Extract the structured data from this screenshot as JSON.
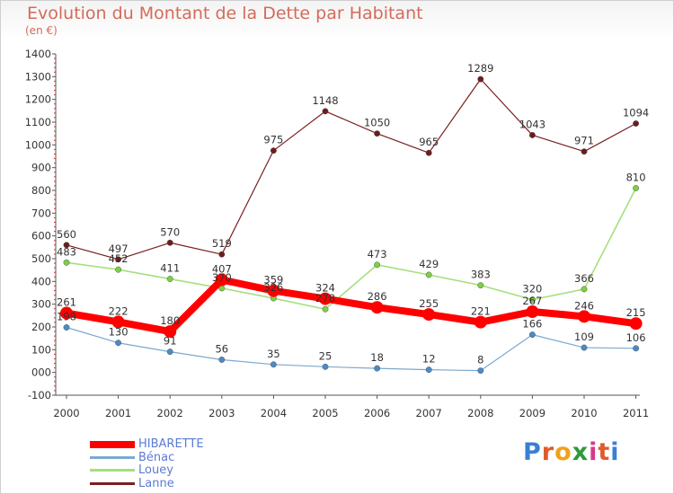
{
  "title": "Evolution du Montant de la Dette par Habitant",
  "subtitle": "(en €)",
  "logo": {
    "text": "Proxiti",
    "letters": [
      "P",
      "r",
      "o",
      "x",
      "i",
      "t",
      "i"
    ],
    "colors": [
      "#3a7fd3",
      "#e05a2a",
      "#f0a21a",
      "#2e9a3b",
      "#d63a8a",
      "#e05a2a",
      "#3a7fd3"
    ]
  },
  "chart_data": {
    "type": "line",
    "title": "Evolution du Montant de la Dette par Habitant",
    "ylabel": "(en €)",
    "xlabel": "",
    "categories": [
      "2000",
      "2001",
      "2002",
      "2003",
      "2004",
      "2005",
      "2006",
      "2007",
      "2008",
      "2009",
      "2010",
      "2011"
    ],
    "ylim": [
      -100,
      1400
    ],
    "yticks": [
      "-100",
      "000",
      "100",
      "200",
      "300",
      "400",
      "500",
      "600",
      "700",
      "800",
      "900",
      "1000",
      "1100",
      "1200",
      "1300",
      "1400"
    ],
    "ytick_values": [
      -100,
      0,
      100,
      200,
      300,
      400,
      500,
      600,
      700,
      800,
      900,
      1000,
      1100,
      1200,
      1300,
      1400
    ],
    "grid": false,
    "legend_placement": "bottom-left",
    "series": [
      {
        "name": "Lanne",
        "color": "#7a1f1f",
        "dot": "#6e1c1c",
        "width": 1.2,
        "values": [
          560,
          497,
          570,
          519,
          975,
          1148,
          1050,
          965,
          1289,
          1043,
          971,
          1094
        ],
        "labels": [
          "560",
          "497",
          "570",
          "519",
          "975",
          "1148",
          "1050",
          "965",
          "1289",
          "1043",
          "971",
          "1094"
        ]
      },
      {
        "name": "Louey",
        "color": "#a6df7e",
        "dot": "#7fcf44",
        "width": 1.6,
        "values": [
          483,
          452,
          411,
          370,
          326,
          278,
          473,
          429,
          383,
          320,
          366,
          810
        ],
        "labels": [
          "483",
          "452",
          "411",
          "370",
          "326",
          "278",
          "473",
          "429",
          "383",
          "320",
          "366",
          "810"
        ]
      },
      {
        "name": "Bénac",
        "color": "#7aa9cf",
        "dot": "#4a8bc6",
        "width": 1.2,
        "values": [
          198,
          130,
          91,
          56,
          35,
          25,
          18,
          12,
          8,
          166,
          109,
          106
        ],
        "labels": [
          "198",
          "130",
          "91",
          "56",
          "35",
          "25",
          "18",
          "12",
          "8",
          "166",
          "109",
          "106"
        ]
      },
      {
        "name": "HIBARETTE",
        "color": "#ff0000",
        "dot": "#ff0000",
        "width": 8,
        "values": [
          261,
          222,
          180,
          407,
          359,
          324,
          286,
          255,
          221,
          267,
          246,
          215
        ],
        "labels": [
          "261",
          "222",
          "180",
          "407",
          "359",
          "324",
          "286",
          "255",
          "221",
          "267",
          "246",
          "215"
        ]
      }
    ],
    "legend": [
      "HIBARETTE",
      "Bénac",
      "Louey",
      "Lanne"
    ]
  }
}
